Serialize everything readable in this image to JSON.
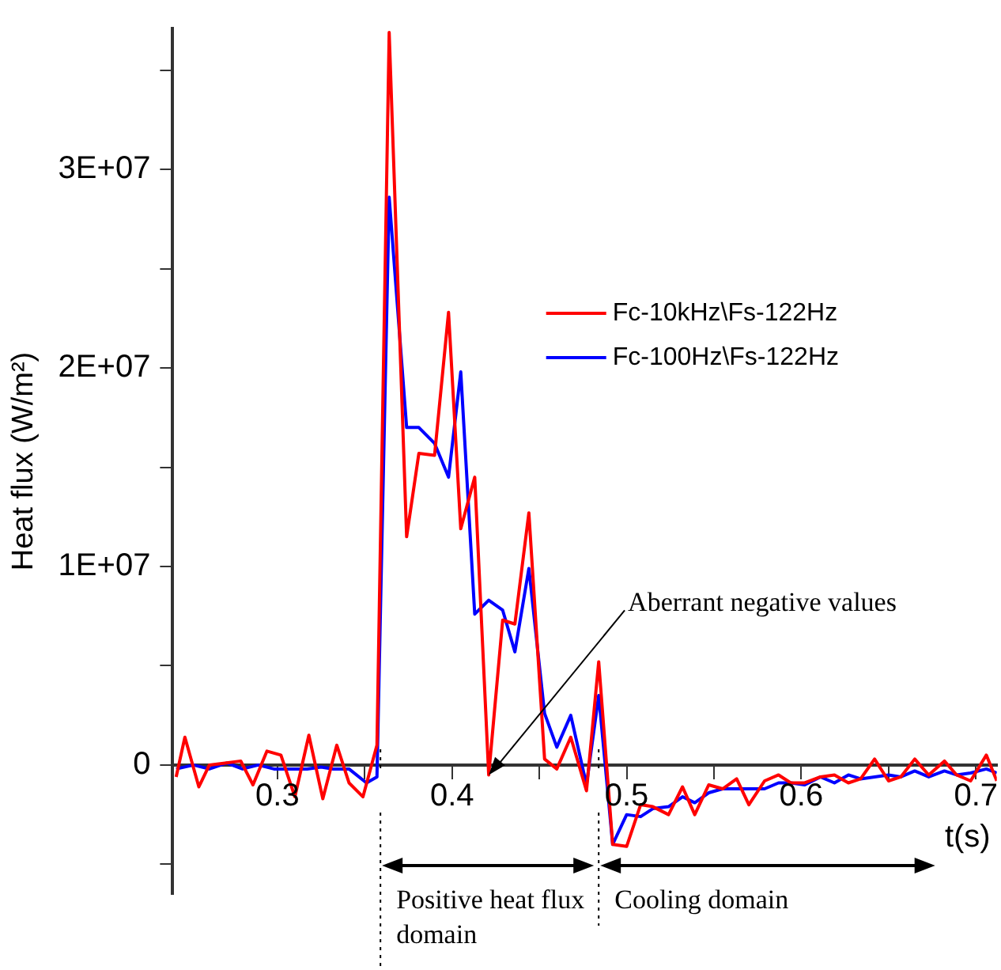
{
  "chart_data": {
    "type": "line",
    "xlabel": "t(s)",
    "ylabel": "Heat flux (W/m²)",
    "xlim": [
      0.24,
      0.712
    ],
    "ylim": [
      -6500000,
      37100000
    ],
    "xticks": [
      0.3,
      {
        "value": 0.35,
        "label": null
      },
      0.4,
      {
        "value": 0.45,
        "label": null
      },
      0.5,
      {
        "value": 0.55,
        "label": null
      },
      0.6,
      {
        "value": 0.65,
        "label": null
      },
      0.7
    ],
    "yticks": [
      {
        "value": -5000000,
        "label": null
      },
      0,
      {
        "value": 5000000,
        "label": null
      },
      {
        "value": 10000000,
        "label": "1E+07"
      },
      {
        "value": 15000000,
        "label": null
      },
      {
        "value": 20000000,
        "label": "2E+07"
      },
      {
        "value": 25000000,
        "label": null
      },
      {
        "value": 30000000,
        "label": "3E+07"
      },
      {
        "value": 35000000,
        "label": null
      }
    ],
    "grid": false,
    "legend": "top right",
    "marker": "none",
    "line_style": "solid",
    "series": [
      {
        "name": "Fc-10kHz\\Fs-122Hz",
        "color": "#ff0000",
        "x": [
          0.242,
          0.247,
          0.255,
          0.261,
          0.27,
          0.279,
          0.286,
          0.294,
          0.302,
          0.31,
          0.318,
          0.326,
          0.334,
          0.341,
          0.349,
          0.357,
          0.364,
          0.374,
          0.381,
          0.39,
          0.398,
          0.405,
          0.413,
          0.421,
          0.429,
          0.436,
          0.444,
          0.453,
          0.46,
          0.468,
          0.477,
          0.484,
          0.492,
          0.5,
          0.508,
          0.515,
          0.524,
          0.532,
          0.539,
          0.547,
          0.555,
          0.563,
          0.57,
          0.579,
          0.587,
          0.594,
          0.602,
          0.611,
          0.619,
          0.627,
          0.634,
          0.642,
          0.65,
          0.657,
          0.665,
          0.673,
          0.682,
          0.689,
          0.697,
          0.706,
          0.712
        ],
        "values": [
          -600000,
          1400000,
          -1100000,
          0,
          100000,
          200000,
          -1000000,
          700000,
          500000,
          -1600000,
          1500000,
          -1700000,
          1000000,
          -900000,
          -1600000,
          1000000,
          36900000,
          11500000,
          15700000,
          15600000,
          22800000,
          11900000,
          14500000,
          -500000,
          7300000,
          7100000,
          12700000,
          300000,
          -200000,
          1400000,
          -1300000,
          5200000,
          -4000000,
          -4100000,
          -2000000,
          -2100000,
          -2500000,
          -1100000,
          -2500000,
          -1000000,
          -1200000,
          -700000,
          -2000000,
          -800000,
          -500000,
          -900000,
          -900000,
          -600000,
          -500000,
          -900000,
          -700000,
          300000,
          -800000,
          -600000,
          300000,
          -500000,
          200000,
          -500000,
          -800000,
          500000,
          -800000
        ]
      },
      {
        "name": "Fc-100Hz\\Fs-122Hz",
        "color": "#0000ff",
        "x": [
          0.242,
          0.252,
          0.261,
          0.271,
          0.28,
          0.289,
          0.298,
          0.307,
          0.317,
          0.325,
          0.332,
          0.341,
          0.351,
          0.357,
          0.364,
          0.374,
          0.381,
          0.39,
          0.398,
          0.405,
          0.413,
          0.421,
          0.429,
          0.436,
          0.444,
          0.453,
          0.46,
          0.468,
          0.477,
          0.484,
          0.492,
          0.5,
          0.508,
          0.515,
          0.524,
          0.532,
          0.539,
          0.547,
          0.555,
          0.563,
          0.57,
          0.579,
          0.587,
          0.594,
          0.602,
          0.611,
          0.619,
          0.627,
          0.634,
          0.642,
          0.65,
          0.657,
          0.665,
          0.673,
          0.682,
          0.689,
          0.697,
          0.706,
          0.712
        ],
        "values": [
          -200000,
          0,
          -200000,
          100000,
          -200000,
          0,
          -200000,
          -200000,
          -200000,
          -100000,
          -200000,
          -200000,
          -900000,
          -600000,
          28600000,
          17000000,
          17000000,
          16200000,
          14500000,
          19800000,
          7600000,
          8300000,
          7800000,
          5700000,
          9900000,
          2600000,
          900000,
          2500000,
          -1000000,
          3500000,
          -4000000,
          -2500000,
          -2600000,
          -2200000,
          -2100000,
          -1600000,
          -1900000,
          -1400000,
          -1200000,
          -1200000,
          -1200000,
          -1200000,
          -900000,
          -900000,
          -1000000,
          -600000,
          -900000,
          -500000,
          -700000,
          -600000,
          -500000,
          -600000,
          -300000,
          -600000,
          -300000,
          -500000,
          -400000,
          -200000,
          -400000
        ]
      }
    ],
    "annotations": [
      {
        "text": "Aberrant negative values",
        "x": 0.421,
        "y": -500000
      }
    ],
    "ref_lines": [
      {
        "axis": "x",
        "value": 0.359,
        "label": "Positive heat flux domain",
        "color": "#000000",
        "line_style": "dotted"
      },
      {
        "axis": "x",
        "value": 0.484,
        "label": "Cooling domain",
        "color": "#000000",
        "line_style": "dotted"
      }
    ]
  }
}
